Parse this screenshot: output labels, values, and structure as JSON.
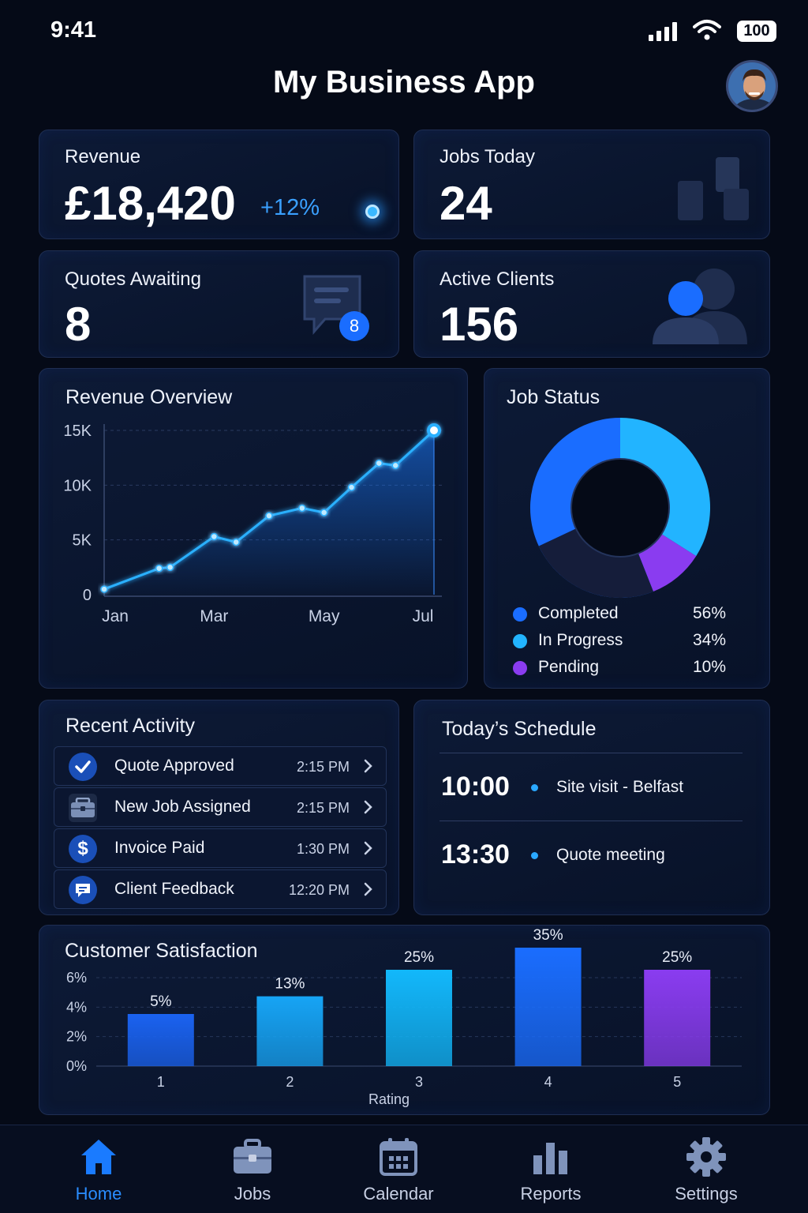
{
  "status_bar": {
    "time": "9:41",
    "battery": "100"
  },
  "header": {
    "title": "My Business App"
  },
  "stats": {
    "revenue": {
      "label": "Revenue",
      "value": "£18,420",
      "change": "+12%"
    },
    "jobs_today": {
      "label": "Jobs Today",
      "value": "24"
    },
    "quotes_awaiting": {
      "label": "Quotes Awaiting",
      "value": "8",
      "badge": "8"
    },
    "active_clients": {
      "label": "Active Clients",
      "value": "156"
    }
  },
  "revenue_overview": {
    "title": "Revenue Overview",
    "chart_data": {
      "type": "line",
      "title": "Revenue Overview",
      "x_tick_labels": [
        "Jan",
        "Mar",
        "May",
        "Jul"
      ],
      "y_tick_labels": [
        "15K",
        "10K",
        "5K",
        "0"
      ],
      "ylim": [
        0,
        15000
      ],
      "xlim": [
        0,
        6
      ],
      "grid": true,
      "series": [
        {
          "x": [
            0,
            1,
            1.2,
            2,
            2.4,
            3,
            3.6,
            4,
            4.5,
            5,
            5.3,
            6
          ],
          "values": [
            500,
            2400,
            2500,
            5300,
            4800,
            7200,
            7900,
            7500,
            9800,
            12000,
            11800,
            15000
          ]
        }
      ]
    }
  },
  "job_status": {
    "title": "Job Status",
    "chart_data": {
      "type": "pie",
      "title": "Job Status",
      "legend": [
        "Completed",
        "In Progress",
        "Pending"
      ],
      "legend_values": [
        "56%",
        "34%",
        "10%"
      ],
      "values": [
        56,
        34,
        10
      ],
      "colors": [
        "#1a6dff",
        "#22b4ff",
        "#8a3cf0"
      ]
    }
  },
  "recent_activity": {
    "title": "Recent Activity",
    "items": [
      {
        "label": "Quote Approved",
        "time": "2:15 PM",
        "icon": "check-icon"
      },
      {
        "label": "New Job Assigned",
        "time": "2:15 PM",
        "icon": "briefcase-icon"
      },
      {
        "label": "Invoice Paid",
        "time": "1:30 PM",
        "icon": "dollar-icon"
      },
      {
        "label": "Client Feedback",
        "time": "12:20 PM",
        "icon": "chat-icon"
      }
    ]
  },
  "schedule": {
    "title": "Today’s Schedule",
    "items": [
      {
        "time": "10:00",
        "label": "Site visit - Belfast"
      },
      {
        "time": "13:30",
        "label": "Quote meeting"
      }
    ]
  },
  "satisfaction": {
    "title": "Customer Satisfaction",
    "chart_data": {
      "type": "bar",
      "title": "Customer Satisfaction",
      "xlabel": "Rating",
      "categories": [
        "1",
        "2",
        "3",
        "4",
        "5"
      ],
      "values": [
        5,
        13,
        25,
        35,
        25
      ],
      "data_labels": [
        "5%",
        "13%",
        "25%",
        "35%",
        "25%"
      ],
      "y_tick_labels": [
        "6%",
        "4%",
        "2%",
        "0%"
      ],
      "grid": true,
      "colors": [
        "#1a62f0",
        "#16a4f5",
        "#12b8fb",
        "#1a6dff",
        "#8a3cf0"
      ]
    }
  },
  "nav": {
    "items": [
      {
        "label": "Home",
        "icon": "home-icon",
        "active": true
      },
      {
        "label": "Jobs",
        "icon": "briefcase-icon"
      },
      {
        "label": "Calendar",
        "icon": "calendar-icon"
      },
      {
        "label": "Reports",
        "icon": "bar-chart-icon"
      },
      {
        "label": "Settings",
        "icon": "gear-icon"
      }
    ]
  }
}
